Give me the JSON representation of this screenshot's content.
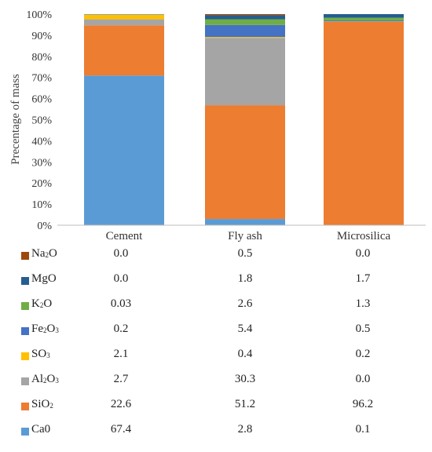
{
  "chart_data": {
    "type": "bar",
    "stacked": true,
    "categories": [
      "Cement",
      "Fly ash",
      "Microsilica"
    ],
    "ylabel": "Precentage of mass",
    "ylim": [
      0,
      100
    ],
    "yticks": [
      "0%",
      "10%",
      "20%",
      "30%",
      "40%",
      "50%",
      "60%",
      "70%",
      "80%",
      "90%",
      "100%"
    ],
    "grid": false,
    "series": [
      {
        "name": "Ca0",
        "name_html": "Ca0",
        "color": "#5B9BD5",
        "values": [
          67.4,
          2.8,
          0.1
        ],
        "labels": [
          "67.4",
          "2.8",
          "0.1"
        ]
      },
      {
        "name": "SiO2",
        "name_html": "SiO<sub>2</sub>",
        "color": "#ED7D31",
        "values": [
          22.6,
          51.2,
          96.2
        ],
        "labels": [
          "22.6",
          "51.2",
          "96.2"
        ]
      },
      {
        "name": "Al2O3",
        "name_html": "Al<sub>2</sub>O<sub>3</sub>",
        "color": "#A5A5A5",
        "values": [
          2.7,
          30.3,
          0.0
        ],
        "labels": [
          "2.7",
          "30.3",
          "0.0"
        ]
      },
      {
        "name": "SO3",
        "name_html": "SO<sub>3</sub>",
        "color": "#FFC000",
        "values": [
          2.1,
          0.4,
          0.2
        ],
        "labels": [
          "2.1",
          "0.4",
          "0.2"
        ]
      },
      {
        "name": "Fe2O3",
        "name_html": "Fe<sub>2</sub>O<sub>3</sub>",
        "color": "#4472C4",
        "values": [
          0.2,
          5.4,
          0.5
        ],
        "labels": [
          "0.2",
          "5.4",
          "0.5"
        ]
      },
      {
        "name": "K2O",
        "name_html": "K<sub>2</sub>O",
        "color": "#70AD47",
        "values": [
          0.03,
          2.6,
          1.3
        ],
        "labels": [
          "0.03",
          "2.6",
          "1.3"
        ]
      },
      {
        "name": "MgO",
        "name_html": "MgO",
        "color": "#255E91",
        "values": [
          0.0,
          1.8,
          1.7
        ],
        "labels": [
          "0.0",
          "1.8",
          "1.7"
        ]
      },
      {
        "name": "Na2O",
        "name_html": "Na<sub>2</sub>O",
        "color": "#9E480E",
        "values": [
          0.0,
          0.5,
          0.0
        ],
        "labels": [
          "0.0",
          "0.5",
          "0.0"
        ]
      }
    ]
  }
}
